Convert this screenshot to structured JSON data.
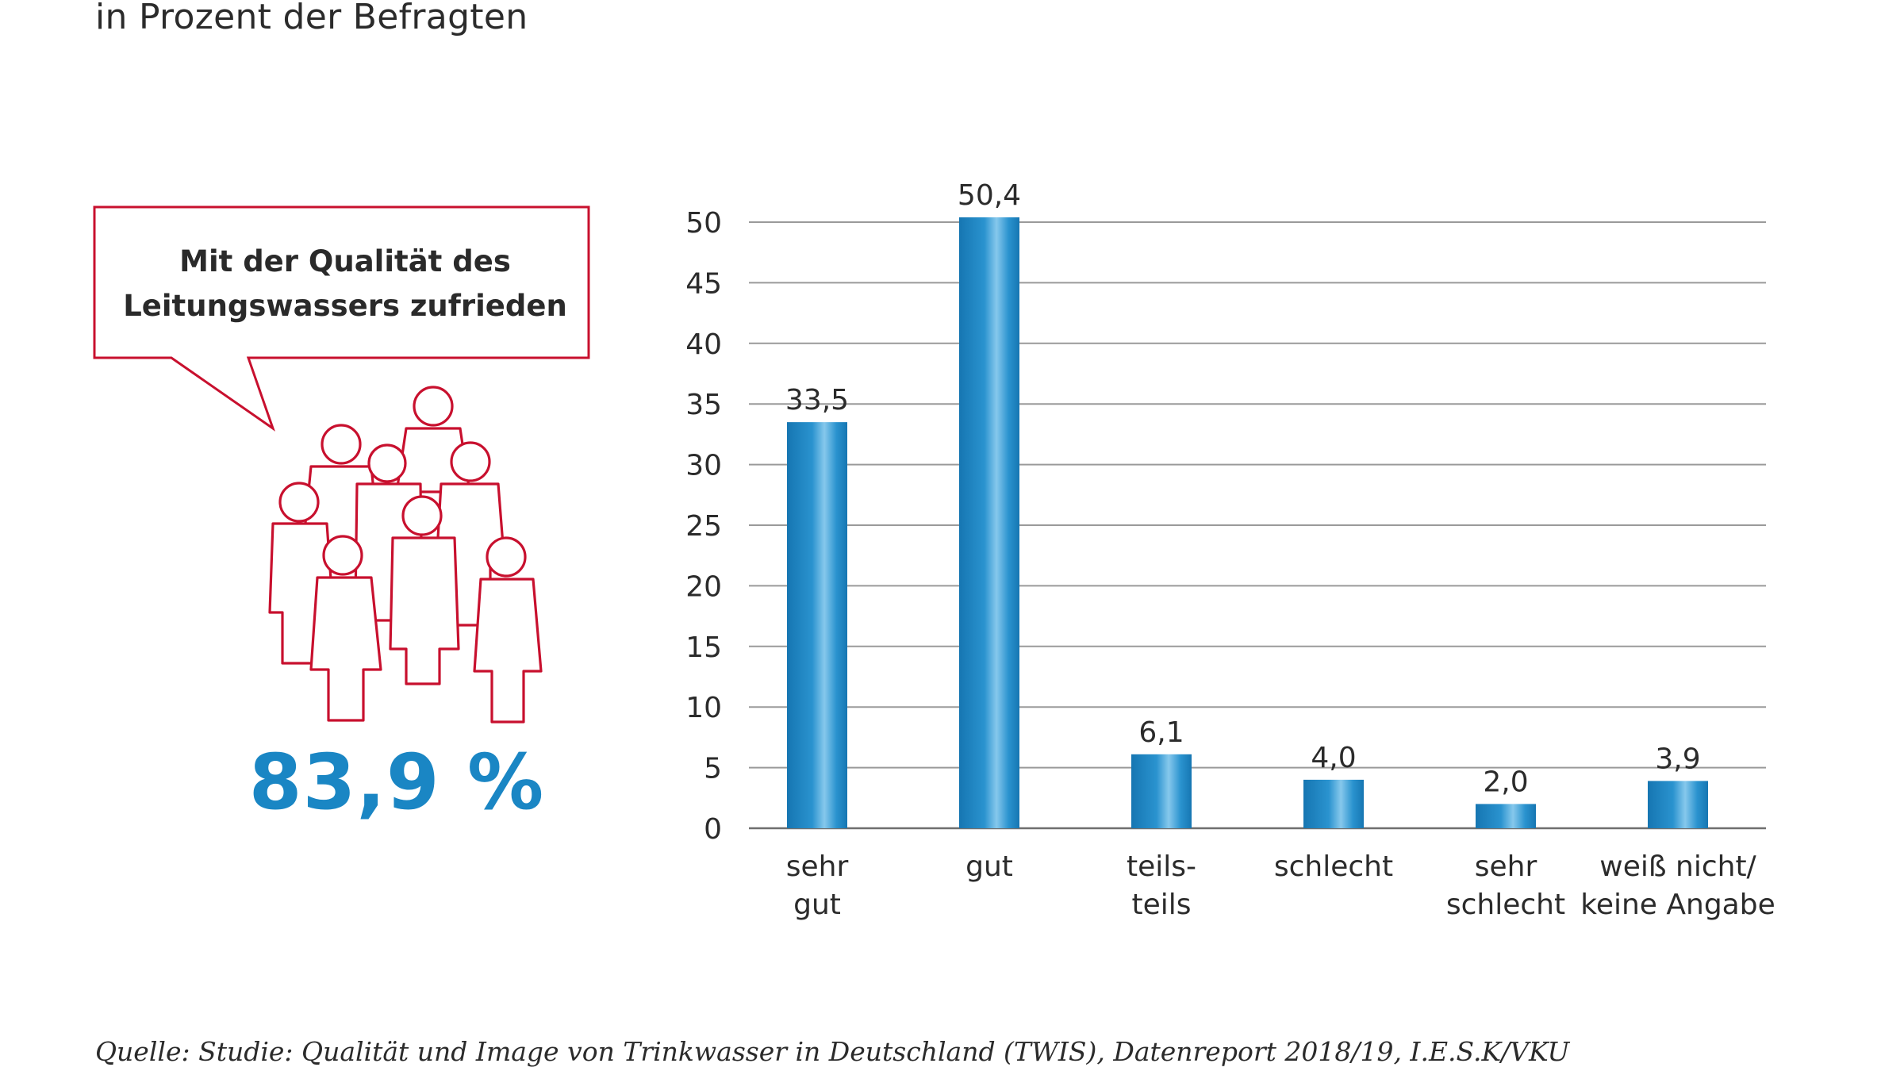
{
  "subtitle": "in Prozent der Befragten",
  "callout": {
    "line1": "Mit der Qualität des",
    "line2": "Leitungswassers zufrieden"
  },
  "highlight_value": "83,9 %",
  "source": "Quelle: Studie: Qualität und Image von Trinkwasser in Deutschland (TWIS), Datenreport 2018/19, I.E.S.K/VKU",
  "colors": {
    "bar": "#1a86c4",
    "bar_highlight": "#7fc4ea",
    "accent_red": "#c8102e",
    "highlight_text": "#1a86c4",
    "gridline": "#9a9a9a"
  },
  "icons": [
    "speech-bubble-icon",
    "people-group-icon"
  ],
  "chart_data": {
    "type": "bar",
    "categories": [
      [
        "sehr",
        "gut"
      ],
      [
        "gut"
      ],
      [
        "teils-",
        "teils"
      ],
      [
        "schlecht"
      ],
      [
        "sehr",
        "schlecht"
      ],
      [
        "weiß nicht/",
        "keine Angabe"
      ]
    ],
    "values": [
      33.5,
      50.4,
      6.1,
      4.0,
      2.0,
      3.9
    ],
    "value_labels": [
      "33,5",
      "50,4",
      "6,1",
      "4,0",
      "2,0",
      "3,9"
    ],
    "yticks": [
      0,
      5,
      10,
      15,
      20,
      25,
      30,
      35,
      40,
      45,
      50
    ],
    "ylim": [
      0,
      50
    ],
    "grid": true,
    "title": "",
    "xlabel": "",
    "ylabel": ""
  }
}
